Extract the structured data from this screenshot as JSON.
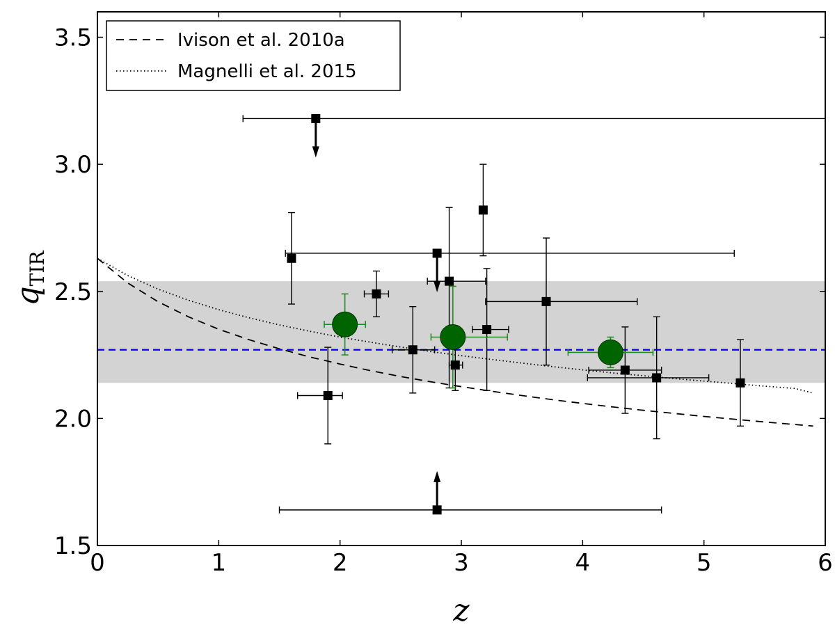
{
  "chart_data": {
    "type": "scatter",
    "xlabel": "z",
    "ylabel": "q",
    "ylabel_subscript": "TIR",
    "xlim": [
      0,
      6
    ],
    "ylim": [
      1.5,
      3.6
    ],
    "xticks": [
      "0",
      "1",
      "2",
      "3",
      "4",
      "5",
      "6"
    ],
    "yticks": [
      "1.5",
      "2.0",
      "2.5",
      "3.0",
      "3.5"
    ],
    "legend_position": "top-left",
    "grid": false,
    "colors": {
      "points": "#000000",
      "stacked": "#006400",
      "stacked_err": "#228b22",
      "mean_line": "#0000ff",
      "band": "#d3d3d3"
    },
    "mean_line": {
      "y": 2.27
    },
    "shaded_band": {
      "ylow": 2.14,
      "yhigh": 2.54
    },
    "curves": [
      {
        "name": "Ivison et al. 2010a",
        "style": "dashed",
        "x": [
          0,
          0.25,
          0.5,
          0.75,
          1.0,
          1.25,
          1.5,
          1.75,
          2.0,
          2.25,
          2.5,
          2.75,
          3.0,
          3.25,
          3.5,
          3.75,
          4.0,
          4.25,
          4.5,
          4.75,
          5.0,
          5.25,
          5.5,
          5.75,
          5.9
        ],
        "y": [
          2.63,
          2.533,
          2.459,
          2.4,
          2.351,
          2.31,
          2.274,
          2.242,
          2.214,
          2.188,
          2.165,
          2.144,
          2.125,
          2.107,
          2.09,
          2.074,
          2.059,
          2.045,
          2.032,
          2.02,
          2.008,
          1.997,
          1.986,
          1.976,
          1.97
        ]
      },
      {
        "name": "Magnelli et al. 2015",
        "style": "dotted",
        "x": [
          0,
          0.25,
          0.5,
          0.75,
          1.0,
          1.25,
          1.5,
          1.75,
          2.0,
          2.25,
          2.5,
          2.75,
          3.0,
          3.25,
          3.5,
          3.75,
          4.0,
          4.25,
          4.5,
          4.75,
          5.0,
          5.25,
          5.5,
          5.75,
          5.9
        ],
        "y": [
          2.63,
          2.562,
          2.509,
          2.465,
          2.428,
          2.396,
          2.368,
          2.343,
          2.32,
          2.3,
          2.281,
          2.263,
          2.247,
          2.232,
          2.218,
          2.204,
          2.191,
          2.179,
          2.168,
          2.157,
          2.147,
          2.137,
          2.127,
          2.118,
          2.1
        ]
      }
    ],
    "points": [
      {
        "x": 1.8,
        "y": 3.18,
        "xerr": [
          0.6,
          4.2
        ],
        "limit": "upper"
      },
      {
        "x": 1.6,
        "y": 2.63,
        "yerr": [
          0.18,
          0.18
        ]
      },
      {
        "x": 2.8,
        "y": 2.65,
        "xerr": [
          1.25,
          2.45
        ],
        "limit": "upper"
      },
      {
        "x": 3.18,
        "y": 2.82,
        "yerr": [
          0.18,
          0.18
        ]
      },
      {
        "x": 2.9,
        "y": 2.54,
        "xerr": [
          0.18,
          0.3
        ],
        "yerr": [
          0.42,
          0.29
        ]
      },
      {
        "x": 2.3,
        "y": 2.49,
        "xerr": [
          0.1,
          0.1
        ],
        "yerr": [
          0.09,
          0.09
        ]
      },
      {
        "x": 3.7,
        "y": 2.46,
        "xerr": [
          0.5,
          0.75
        ],
        "yerr": [
          0.25,
          0.25
        ]
      },
      {
        "x": 3.21,
        "y": 2.35,
        "xerr": [
          0.12,
          0.18
        ],
        "yerr": [
          0.24,
          0.24
        ]
      },
      {
        "x": 2.6,
        "y": 2.27,
        "xerr": [
          0.17,
          0.18
        ],
        "yerr": [
          0.17,
          0.17
        ]
      },
      {
        "x": 2.95,
        "y": 2.21,
        "xerr": [
          0.05,
          0.06
        ],
        "yerr": [
          0.1,
          0.1
        ]
      },
      {
        "x": 1.9,
        "y": 2.09,
        "xerr": [
          0.25,
          0.12
        ],
        "yerr": [
          0.19,
          0.19
        ]
      },
      {
        "x": 4.35,
        "y": 2.19,
        "xerr": [
          0.3,
          0.3
        ],
        "yerr": [
          0.17,
          0.17
        ]
      },
      {
        "x": 4.61,
        "y": 2.16,
        "xerr": [
          0.57,
          0.43
        ],
        "yerr": [
          0.24,
          0.24
        ]
      },
      {
        "x": 5.3,
        "y": 2.14,
        "yerr": [
          0.17,
          0.17
        ]
      },
      {
        "x": 2.8,
        "y": 1.64,
        "xerr": [
          1.3,
          1.85
        ],
        "limit": "lower"
      }
    ],
    "stacked_points": [
      {
        "x": 2.04,
        "y": 2.37,
        "xerr": [
          0.17,
          0.17
        ],
        "yerr": [
          0.12,
          0.12
        ]
      },
      {
        "x": 2.93,
        "y": 2.32,
        "xerr": [
          0.18,
          0.45
        ],
        "yerr": [
          0.2,
          0.2
        ]
      },
      {
        "x": 4.23,
        "y": 2.26,
        "xerr": [
          0.35,
          0.35
        ],
        "yerr": [
          0.06,
          0.06
        ]
      }
    ]
  }
}
